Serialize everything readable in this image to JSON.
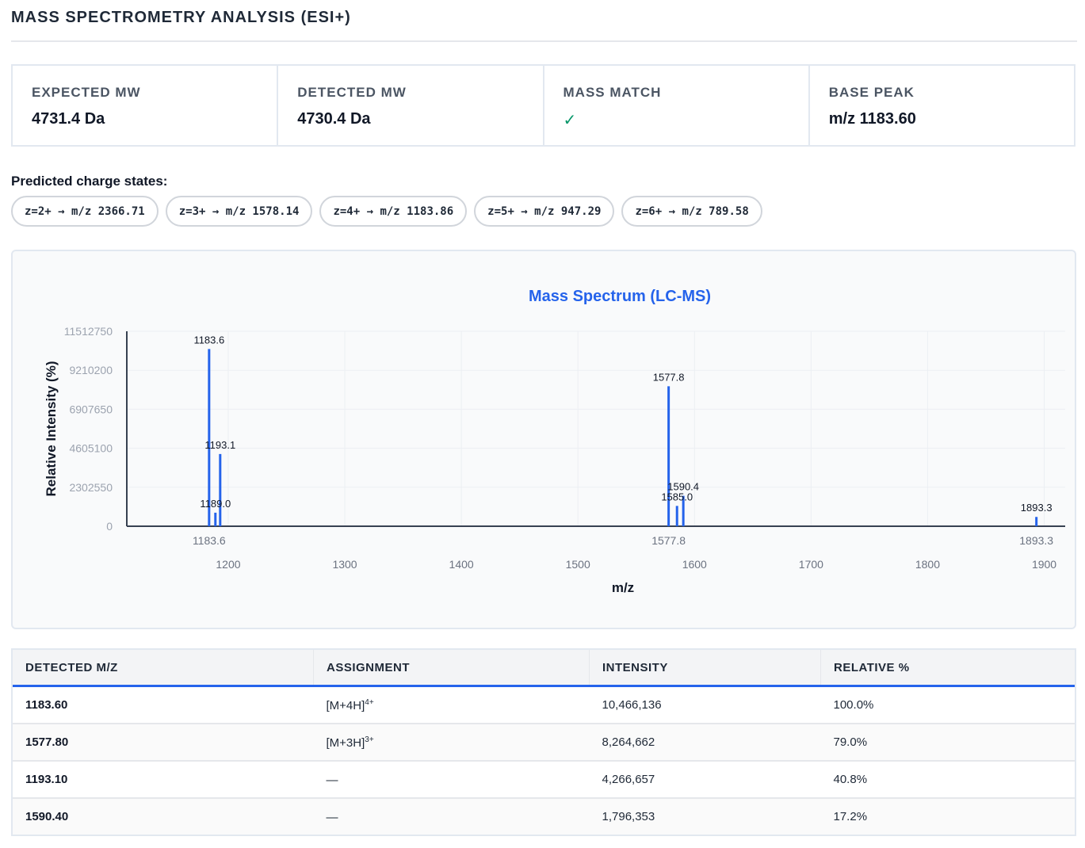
{
  "header": {
    "title": "MASS SPECTROMETRY ANALYSIS (ESI+)"
  },
  "stats": [
    {
      "label": "EXPECTED MW",
      "value": "4731.4 Da"
    },
    {
      "label": "DETECTED MW",
      "value": "4730.4 Da"
    },
    {
      "label": "MASS MATCH",
      "value": "✓",
      "value_color": "#059669"
    },
    {
      "label": "BASE PEAK",
      "value": "m/z 1183.60"
    }
  ],
  "charge_states": {
    "heading": "Predicted charge states:",
    "items": [
      "z=2+ → m/z 2366.71",
      "z=3+ → m/z 1578.14",
      "z=4+ → m/z 1183.86",
      "z=5+ → m/z 947.29",
      "z=6+ → m/z 789.58"
    ]
  },
  "chart_data": {
    "type": "bar",
    "title": "Mass Spectrum (LC-MS)",
    "xlabel": "m/z",
    "ylabel": "Relative Intensity (%)",
    "xlim": [
      1113,
      1918
    ],
    "ylim": [
      0,
      11512750
    ],
    "xticks": [
      1200,
      1300,
      1400,
      1500,
      1600,
      1700,
      1800,
      1900
    ],
    "yticks": [
      0,
      2302550,
      4605100,
      6907650,
      9210200,
      11512750
    ],
    "highlight_ticks": [
      "1183.6",
      "1577.8",
      "1893.3"
    ],
    "grid": true,
    "color": "#2563eb",
    "peaks": [
      {
        "x": 1183.6,
        "y": 10466136,
        "label": "1183.6"
      },
      {
        "x": 1189.0,
        "y": 800000,
        "label": "1189.0"
      },
      {
        "x": 1193.1,
        "y": 4266657,
        "label": "1193.1"
      },
      {
        "x": 1577.8,
        "y": 8264662,
        "label": "1577.8"
      },
      {
        "x": 1585.0,
        "y": 1200000,
        "label": "1585.0"
      },
      {
        "x": 1590.4,
        "y": 1796353,
        "label": "1590.4"
      },
      {
        "x": 1893.3,
        "y": 550000,
        "label": "1893.3"
      }
    ]
  },
  "table": {
    "headers": [
      "DETECTED M/Z",
      "ASSIGNMENT",
      "INTENSITY",
      "RELATIVE %"
    ],
    "rows": [
      {
        "mz": "1183.60",
        "assign": "[M+4H]",
        "assign_sup": "4+",
        "intensity": "10,466,136",
        "relative": "100.0%"
      },
      {
        "mz": "1577.80",
        "assign": "[M+3H]",
        "assign_sup": "3+",
        "intensity": "8,264,662",
        "relative": "79.0%"
      },
      {
        "mz": "1193.10",
        "assign": "—",
        "assign_sup": "",
        "intensity": "4,266,657",
        "relative": "40.8%"
      },
      {
        "mz": "1590.40",
        "assign": "—",
        "assign_sup": "",
        "intensity": "1,796,353",
        "relative": "17.2%"
      }
    ]
  }
}
